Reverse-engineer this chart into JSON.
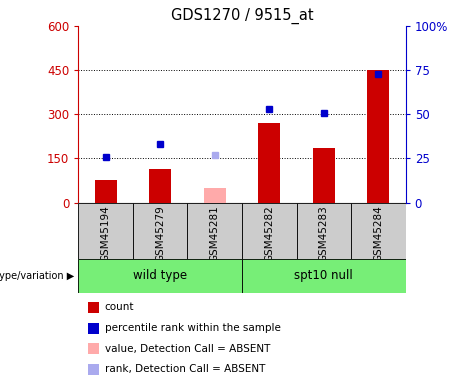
{
  "title": "GDS1270 / 9515_at",
  "samples": [
    "GSM45194",
    "GSM45279",
    "GSM45281",
    "GSM45282",
    "GSM45283",
    "GSM45284"
  ],
  "absent_mask": [
    false,
    false,
    true,
    false,
    false,
    false
  ],
  "bar_values": [
    75,
    115,
    50,
    270,
    185,
    450
  ],
  "rank_values_pct": [
    26,
    33,
    27,
    53,
    51,
    73
  ],
  "bar_color_present": "#cc0000",
  "bar_color_absent": "#ffaaaa",
  "rank_color_present": "#0000cc",
  "rank_color_absent": "#aaaaee",
  "ylim_left": [
    0,
    600
  ],
  "ylim_right": [
    0,
    100
  ],
  "yticks_left": [
    0,
    150,
    300,
    450,
    600
  ],
  "yticks_right": [
    0,
    25,
    50,
    75,
    100
  ],
  "ytick_labels_left": [
    "0",
    "150",
    "300",
    "450",
    "600"
  ],
  "ytick_labels_right": [
    "0",
    "25",
    "50",
    "75",
    "100%"
  ],
  "left_axis_color": "#cc0000",
  "right_axis_color": "#0000cc",
  "group_labels": [
    "wild type",
    "spt10 null"
  ],
  "group_color": "#77ee77",
  "cell_color": "#cccccc",
  "legend_items": [
    {
      "label": "count",
      "color": "#cc0000"
    },
    {
      "label": "percentile rank within the sample",
      "color": "#0000cc"
    },
    {
      "label": "value, Detection Call = ABSENT",
      "color": "#ffaaaa"
    },
    {
      "label": "rank, Detection Call = ABSENT",
      "color": "#aaaaee"
    }
  ]
}
